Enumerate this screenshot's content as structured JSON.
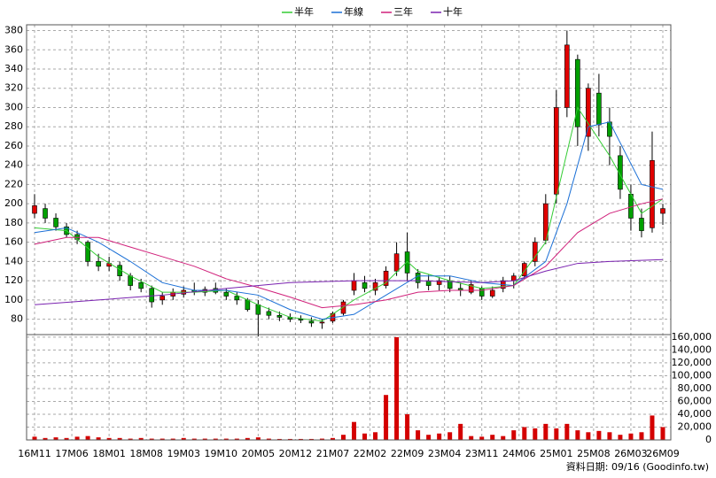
{
  "chart_data": [
    {
      "type": "candlestick",
      "x": [
        0,
        2,
        4,
        6,
        8,
        10,
        12,
        14,
        16,
        18,
        20,
        22,
        24,
        26,
        28,
        30,
        32,
        34,
        36,
        38,
        40,
        42,
        44,
        46,
        48,
        50,
        52,
        54,
        56,
        58,
        60,
        62,
        64,
        66,
        68,
        70,
        72,
        74,
        76,
        78,
        80,
        82,
        84,
        86,
        88,
        90,
        92,
        94,
        96,
        98,
        100,
        102,
        104,
        106,
        108,
        110,
        112,
        114,
        116,
        118
      ],
      "open": [
        190,
        195,
        185,
        176,
        168,
        160,
        140,
        135,
        136,
        125,
        118,
        112,
        100,
        104,
        106,
        110,
        108,
        112,
        108,
        104,
        100,
        95,
        88,
        84,
        82,
        80,
        78,
        76,
        78,
        86,
        110,
        118,
        110,
        115,
        130,
        150,
        128,
        120,
        116,
        120,
        112,
        108,
        112,
        104,
        112,
        120,
        125,
        140,
        162,
        210,
        300,
        350,
        270,
        315,
        285,
        250,
        210,
        185,
        175,
        190
      ],
      "high": [
        210,
        200,
        190,
        180,
        172,
        162,
        148,
        145,
        140,
        128,
        122,
        115,
        108,
        112,
        114,
        118,
        114,
        118,
        112,
        108,
        102,
        100,
        92,
        88,
        86,
        84,
        82,
        80,
        88,
        100,
        128,
        125,
        122,
        135,
        160,
        170,
        132,
        126,
        124,
        125,
        118,
        120,
        114,
        114,
        124,
        128,
        140,
        165,
        210,
        318,
        380,
        355,
        325,
        335,
        300,
        260,
        220,
        195,
        275,
        200
      ],
      "low": [
        185,
        180,
        172,
        165,
        158,
        135,
        130,
        130,
        120,
        110,
        108,
        92,
        95,
        100,
        103,
        105,
        104,
        106,
        100,
        95,
        88,
        62,
        80,
        78,
        77,
        76,
        72,
        70,
        76,
        84,
        105,
        108,
        105,
        112,
        125,
        120,
        112,
        110,
        110,
        108,
        104,
        106,
        100,
        102,
        108,
        112,
        122,
        135,
        158,
        200,
        290,
        260,
        255,
        270,
        240,
        205,
        172,
        165,
        170,
        178
      ],
      "close": [
        198,
        185,
        176,
        168,
        163,
        140,
        135,
        138,
        125,
        115,
        112,
        98,
        104,
        108,
        110,
        108,
        111,
        108,
        104,
        100,
        90,
        85,
        84,
        82,
        80,
        79,
        76,
        77,
        86,
        98,
        120,
        112,
        118,
        130,
        148,
        128,
        118,
        115,
        120,
        112,
        110,
        116,
        104,
        110,
        120,
        125,
        138,
        160,
        200,
        300,
        365,
        280,
        320,
        282,
        270,
        215,
        185,
        172,
        245,
        195
      ],
      "up_color": "#e00000",
      "down_color": "#00a000",
      "series": [
        {
          "name": "半年",
          "color": "#33cc33",
          "x": [
            0,
            6,
            12,
            18,
            24,
            30,
            36,
            42,
            48,
            54,
            60,
            66,
            70,
            72,
            78,
            84,
            90,
            96,
            102,
            108,
            114,
            118
          ],
          "values": [
            175,
            172,
            145,
            125,
            108,
            108,
            110,
            95,
            82,
            78,
            100,
            118,
            140,
            130,
            120,
            112,
            115,
            160,
            300,
            250,
            190,
            205
          ]
        },
        {
          "name": "年線",
          "color": "#1a6fd6",
          "x": [
            0,
            6,
            12,
            18,
            24,
            30,
            36,
            42,
            48,
            54,
            60,
            66,
            72,
            78,
            84,
            90,
            96,
            100,
            104,
            108,
            114,
            118
          ],
          "values": [
            170,
            175,
            160,
            140,
            118,
            110,
            110,
            105,
            90,
            80,
            85,
            105,
            125,
            125,
            118,
            115,
            140,
            200,
            280,
            285,
            220,
            215
          ]
        },
        {
          "name": "三年",
          "color": "#d0207a",
          "x": [
            0,
            6,
            12,
            18,
            24,
            30,
            36,
            42,
            48,
            54,
            60,
            66,
            72,
            78,
            84,
            90,
            96,
            102,
            108,
            114,
            118
          ],
          "values": [
            158,
            165,
            165,
            155,
            145,
            135,
            122,
            113,
            103,
            92,
            95,
            100,
            108,
            110,
            110,
            115,
            135,
            170,
            190,
            200,
            205
          ]
        },
        {
          "name": "十年",
          "color": "#7a22b0",
          "x": [
            0,
            12,
            24,
            36,
            48,
            60,
            72,
            84,
            90,
            96,
            102,
            108,
            118
          ],
          "values": [
            95,
            100,
            105,
            112,
            118,
            120,
            120,
            118,
            120,
            130,
            138,
            140,
            142
          ]
        }
      ],
      "xlim": [
        -1.5,
        119.5
      ],
      "xticks": [
        {
          "value": 0,
          "label": "16M11"
        },
        {
          "value": 7,
          "label": "17M06"
        },
        {
          "value": 14,
          "label": "18M01"
        },
        {
          "value": 21,
          "label": "18M08"
        },
        {
          "value": 28,
          "label": "19M03"
        },
        {
          "value": 35,
          "label": "19M10"
        },
        {
          "value": 42,
          "label": "20M05"
        },
        {
          "value": 49,
          "label": "20M12"
        },
        {
          "value": 56,
          "label": "21M07"
        },
        {
          "value": 63,
          "label": "22M02"
        },
        {
          "value": 70,
          "label": "22M09"
        },
        {
          "value": 77,
          "label": "23M04"
        },
        {
          "value": 84,
          "label": "23M11"
        },
        {
          "value": 91,
          "label": "24M06"
        },
        {
          "value": 98,
          "label": "25M01"
        },
        {
          "value": 105,
          "label": "25M08"
        },
        {
          "value": 112,
          "label": "26M03"
        },
        {
          "value": 118,
          "label": "26M09"
        }
      ],
      "ylim": [
        64,
        386
      ],
      "yticks": [
        80,
        100,
        120,
        140,
        160,
        180,
        200,
        220,
        240,
        260,
        280,
        300,
        320,
        340,
        360,
        380
      ],
      "grid": true
    },
    {
      "type": "bar",
      "x": [
        0,
        2,
        4,
        6,
        8,
        10,
        12,
        14,
        16,
        18,
        20,
        22,
        24,
        26,
        28,
        30,
        32,
        34,
        36,
        38,
        40,
        42,
        44,
        46,
        48,
        50,
        52,
        54,
        56,
        58,
        60,
        62,
        64,
        66,
        68,
        70,
        72,
        74,
        76,
        78,
        80,
        82,
        84,
        86,
        88,
        90,
        92,
        94,
        96,
        98,
        100,
        102,
        104,
        106,
        108,
        110,
        112,
        114,
        116,
        118
      ],
      "values": [
        5000,
        3000,
        4000,
        3000,
        5000,
        6000,
        4000,
        3000,
        3000,
        2000,
        3000,
        2000,
        2000,
        2000,
        3000,
        2000,
        2000,
        2000,
        2000,
        2000,
        3000,
        4000,
        2000,
        1500,
        1500,
        1500,
        1500,
        2000,
        3000,
        8000,
        28000,
        10000,
        12000,
        70000,
        160000,
        40000,
        15000,
        8000,
        10000,
        12000,
        25000,
        6000,
        5000,
        8000,
        6000,
        15000,
        20000,
        18000,
        25000,
        18000,
        25000,
        15000,
        12000,
        14000,
        12000,
        8000,
        10000,
        12000,
        38000,
        20000
      ],
      "color": "#d40000",
      "xlim": [
        -1.5,
        119.5
      ],
      "ylim": [
        0,
        164000
      ],
      "yticks": [
        0,
        {
          "value": 20000,
          "label": "20,000"
        },
        {
          "value": 40000,
          "label": "40,000"
        },
        {
          "value": 60000,
          "label": "60,000"
        },
        {
          "value": 80000,
          "label": "80,000"
        },
        {
          "value": 100000,
          "label": "100,000"
        },
        {
          "value": 120000,
          "label": "120,000"
        },
        {
          "value": 140000,
          "label": "140,000"
        },
        {
          "value": 160000,
          "label": "160,000"
        }
      ],
      "grid": true
    }
  ],
  "footer": "資料日期: 09/16 (Goodinfo.tw)"
}
